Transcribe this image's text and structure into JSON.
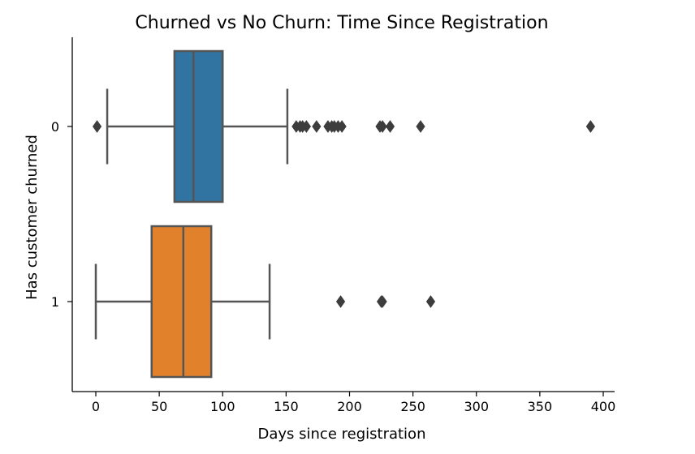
{
  "chart_data": {
    "type": "boxplot",
    "title": "Churned vs No Churn: Time Since Registration",
    "xlabel": "Days since registration",
    "ylabel": "Has customer churned",
    "xlim": [
      -20,
      410
    ],
    "xticks": [
      0,
      50,
      100,
      150,
      200,
      250,
      300,
      350,
      400
    ],
    "orientation": "horizontal",
    "grid": false,
    "series": [
      {
        "name": "0",
        "color": "#3274a1",
        "whisker_low": 9,
        "q1": 62,
        "median": 77,
        "q3": 100,
        "whisker_high": 151,
        "outliers": [
          1,
          158,
          161,
          163,
          166,
          174,
          183,
          186,
          188,
          191,
          194,
          224,
          226,
          232,
          256,
          390
        ]
      },
      {
        "name": "1",
        "color": "#e1812c",
        "whisker_low": 0,
        "q1": 44,
        "median": 69,
        "q3": 91,
        "whisker_high": 137,
        "outliers": [
          193,
          225,
          226,
          264
        ]
      }
    ]
  }
}
